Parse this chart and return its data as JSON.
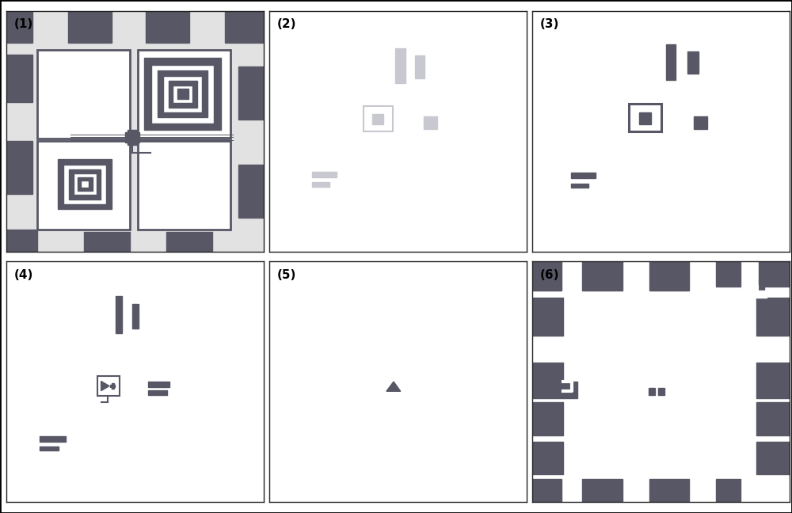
{
  "dark": "#575766",
  "vlight": "#c8c8d0",
  "purple": "#8850a0",
  "bg1": "#e2e2e2",
  "label_fs": 11,
  "panel_edge": "#222222"
}
